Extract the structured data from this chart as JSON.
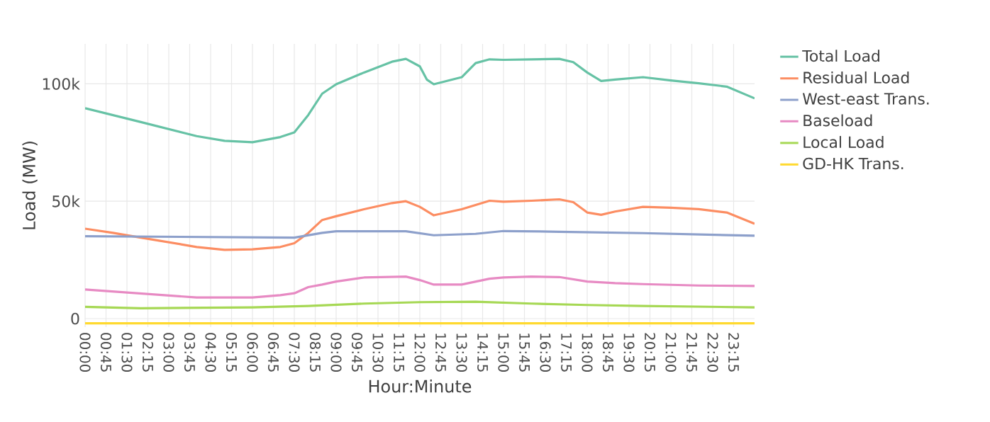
{
  "chart_data": {
    "type": "line",
    "xlabel": "Hour:Minute",
    "ylabel": "Load (MW)",
    "grid": true,
    "legend": "right",
    "line_style": "solid",
    "marker": "none",
    "xlim": [
      0,
      24
    ],
    "ylim": [
      -3600,
      117000
    ],
    "yticks": [
      0,
      {
        "value": 50000,
        "label": "50k"
      },
      {
        "value": 100000,
        "label": "100k"
      }
    ],
    "xticks": [
      {
        "value": 0,
        "label": "00:00"
      },
      {
        "value": 0.75,
        "label": "00:45"
      },
      {
        "value": 1.5,
        "label": "01:30"
      },
      {
        "value": 2.25,
        "label": "02:15"
      },
      {
        "value": 3,
        "label": "03:00"
      },
      {
        "value": 3.75,
        "label": "03:45"
      },
      {
        "value": 4.5,
        "label": "04:30"
      },
      {
        "value": 5.25,
        "label": "05:15"
      },
      {
        "value": 6,
        "label": "06:00"
      },
      {
        "value": 6.75,
        "label": "06:45"
      },
      {
        "value": 7.5,
        "label": "07:30"
      },
      {
        "value": 8.25,
        "label": "08:15"
      },
      {
        "value": 9,
        "label": "09:00"
      },
      {
        "value": 9.75,
        "label": "09:45"
      },
      {
        "value": 10.5,
        "label": "10:30"
      },
      {
        "value": 11.25,
        "label": "11:15"
      },
      {
        "value": 12,
        "label": "12:00"
      },
      {
        "value": 12.75,
        "label": "12:45"
      },
      {
        "value": 13.5,
        "label": "13:30"
      },
      {
        "value": 14.25,
        "label": "14:15"
      },
      {
        "value": 15,
        "label": "15:00"
      },
      {
        "value": 15.75,
        "label": "15:45"
      },
      {
        "value": 16.5,
        "label": "16:30"
      },
      {
        "value": 17.25,
        "label": "17:15"
      },
      {
        "value": 18,
        "label": "18:00"
      },
      {
        "value": 18.75,
        "label": "18:45"
      },
      {
        "value": 19.5,
        "label": "19:30"
      },
      {
        "value": 20.25,
        "label": "20:15"
      },
      {
        "value": 21,
        "label": "21:00"
      },
      {
        "value": 21.75,
        "label": "21:45"
      },
      {
        "value": 22.5,
        "label": "22:30"
      },
      {
        "value": 23.25,
        "label": "23:15"
      }
    ],
    "series": [
      {
        "name": "Total Load",
        "color": "#66c2a5",
        "x": [
          0,
          2,
          4,
          5,
          6,
          7,
          7.5,
          8,
          8.5,
          9,
          10,
          11,
          11.5,
          12,
          12.25,
          12.5,
          13.5,
          14,
          14.5,
          15,
          16,
          17,
          17.5,
          18,
          18.5,
          19,
          20,
          21,
          22,
          23,
          24
        ],
        "values": [
          89600,
          83700,
          77700,
          75700,
          75100,
          77300,
          79300,
          86700,
          95800,
          99800,
          104800,
          109400,
          110600,
          107400,
          101800,
          99800,
          102800,
          108800,
          110400,
          110200,
          110400,
          110600,
          109200,
          104800,
          101200,
          101800,
          102800,
          101400,
          100200,
          98800,
          93800
        ]
      },
      {
        "name": "Residual Load",
        "color": "#fc8d62",
        "x": [
          0,
          1,
          2,
          3,
          4,
          5,
          6,
          7,
          7.5,
          8,
          8.5,
          9,
          10,
          11,
          11.5,
          12,
          12.5,
          13.5,
          14.5,
          15,
          16,
          17,
          17.5,
          18,
          18.5,
          19,
          20,
          21,
          22,
          23,
          24
        ],
        "values": [
          38300,
          36500,
          34500,
          32500,
          30500,
          29300,
          29500,
          30500,
          32100,
          36500,
          42000,
          43600,
          46600,
          49200,
          50000,
          47600,
          44000,
          46600,
          50200,
          49800,
          50200,
          50800,
          49600,
          45200,
          44200,
          45600,
          47600,
          47200,
          46600,
          45200,
          40400
        ]
      },
      {
        "name": "West-east Trans.",
        "color": "#8da0cb",
        "x": [
          0,
          7.5,
          8.5,
          9,
          11.5,
          12.5,
          14,
          15,
          17,
          20,
          24
        ],
        "values": [
          35100,
          34500,
          36500,
          37200,
          37200,
          35500,
          36100,
          37300,
          37000,
          36400,
          35300
        ]
      },
      {
        "name": "Baseload",
        "color": "#e78ac3",
        "x": [
          0,
          4,
          6,
          7,
          7.5,
          8,
          8.5,
          9,
          10,
          11.5,
          12,
          12.5,
          13.5,
          14.5,
          15,
          16,
          17,
          18,
          19,
          20,
          22,
          24
        ],
        "values": [
          12400,
          9000,
          9000,
          10000,
          10800,
          13400,
          14500,
          15800,
          17500,
          17900,
          16400,
          14500,
          14500,
          17000,
          17500,
          17900,
          17700,
          15800,
          15100,
          14700,
          14100,
          13900
        ]
      },
      {
        "name": "Local Load",
        "color": "#a6d854",
        "x": [
          0,
          2,
          6,
          8,
          10,
          12,
          14,
          16,
          18,
          20,
          24
        ],
        "values": [
          5000,
          4400,
          4800,
          5400,
          6400,
          7000,
          7200,
          6400,
          5800,
          5400,
          4800
        ]
      },
      {
        "name": "GD-HK Trans.",
        "color": "#ffd92f",
        "x": [
          0,
          24
        ],
        "values": [
          -2000,
          -2000
        ]
      }
    ]
  }
}
